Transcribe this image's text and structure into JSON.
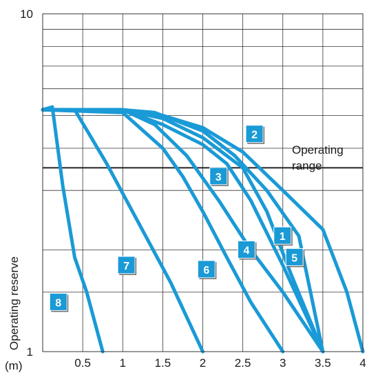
{
  "chart_data": {
    "type": "line",
    "title": "",
    "xlabel": "",
    "ylabel": "Operating reserve",
    "x_unit_label": "(m)",
    "xlim": [
      0,
      4
    ],
    "ylim": [
      1,
      10
    ],
    "y_scale": "log",
    "grid": true,
    "x_ticks": [
      "0.5",
      "1",
      "1.5",
      "2",
      "2.5",
      "3",
      "3.5",
      "4"
    ],
    "x_tick_values": [
      0.5,
      1,
      1.5,
      2,
      2.5,
      3,
      3.5,
      4
    ],
    "y_ticks": [
      "1",
      "10"
    ],
    "y_tick_values": [
      1,
      10
    ],
    "threshold": {
      "value": 3.5,
      "label_line1": "Operating",
      "label_line2": "range"
    },
    "curve_color": "#1a9ad6",
    "badge_color": "#1a9ad6",
    "series": [
      {
        "name": "1",
        "x": [
          0,
          1,
          1.4,
          2.0,
          2.4,
          2.8,
          3.2,
          3.5
        ],
        "y": [
          5.2,
          5.2,
          5.1,
          4.5,
          3.8,
          3.0,
          2.2,
          1.0
        ]
      },
      {
        "name": "2",
        "x": [
          0,
          1,
          1.5,
          2.0,
          2.5,
          3.0,
          3.5,
          3.8,
          4.0
        ],
        "y": [
          5.2,
          5.2,
          5.0,
          4.6,
          3.9,
          3.0,
          2.3,
          1.5,
          1.0
        ]
      },
      {
        "name": "3",
        "x": [
          0,
          1,
          1.5,
          2.0,
          2.3,
          2.6,
          3.0,
          3.5
        ],
        "y": [
          5.2,
          5.2,
          4.7,
          4.1,
          3.6,
          2.8,
          1.8,
          1.0
        ]
      },
      {
        "name": "4",
        "x": [
          0,
          1,
          1.4,
          1.8,
          2.2,
          2.6,
          3.0,
          3.5
        ],
        "y": [
          5.2,
          5.2,
          4.7,
          3.8,
          2.8,
          2.0,
          1.5,
          1.0
        ]
      },
      {
        "name": "5",
        "x": [
          0,
          1,
          1.5,
          2.0,
          2.5,
          2.8,
          3.1,
          3.5
        ],
        "y": [
          5.2,
          5.2,
          4.9,
          4.3,
          3.5,
          2.6,
          1.7,
          1.0
        ]
      },
      {
        "name": "6",
        "x": [
          0,
          1,
          1.5,
          1.75,
          2.0,
          2.3,
          2.6,
          3.0
        ],
        "y": [
          5.2,
          5.1,
          4.0,
          3.3,
          2.6,
          1.9,
          1.4,
          1.0
        ]
      },
      {
        "name": "7",
        "x": [
          0,
          0.4,
          0.8,
          1.2,
          1.6,
          2.0
        ],
        "y": [
          5.2,
          5.2,
          3.6,
          2.4,
          1.6,
          1.0
        ]
      },
      {
        "name": "8",
        "x": [
          0,
          0.12,
          0.25,
          0.4,
          0.55,
          0.75
        ],
        "y": [
          5.2,
          5.3,
          3.1,
          1.9,
          1.5,
          1.0
        ]
      }
    ],
    "badges": [
      {
        "label": "1",
        "x": 3.0,
        "y": 2.2
      },
      {
        "label": "2",
        "x": 2.65,
        "y": 4.4
      },
      {
        "label": "3",
        "x": 2.2,
        "y": 3.3
      },
      {
        "label": "4",
        "x": 2.55,
        "y": 2.0
      },
      {
        "label": "5",
        "x": 3.15,
        "y": 1.9
      },
      {
        "name": "badge-6",
        "label": "6",
        "x": 2.05,
        "y": 1.75
      },
      {
        "label": "7",
        "x": 1.05,
        "y": 1.8
      },
      {
        "label": "8",
        "x": 0.2,
        "y": 1.4
      }
    ]
  }
}
